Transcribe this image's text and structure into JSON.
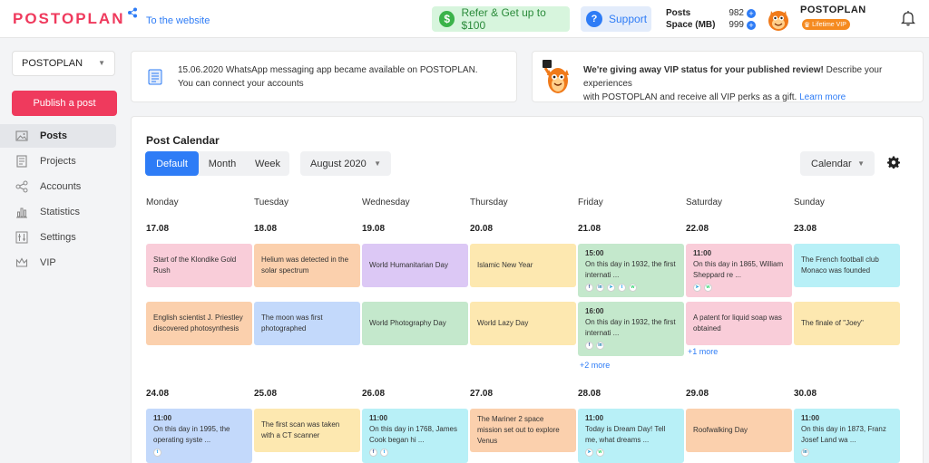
{
  "header": {
    "logo": "POSTOPLAN",
    "to_website": "To the website",
    "refer_label": "Refer & Get up to $100",
    "refer_symbol": "$",
    "support_label": "Support",
    "support_symbol": "?",
    "posts_label": "Posts",
    "posts_value": "982",
    "space_label": "Space (MB)",
    "space_value": "999",
    "plus_symbol": "+",
    "user_name": "POSTOPLAN",
    "vip_badge": "Lifetime VIP"
  },
  "sidebar": {
    "brand": "POSTOPLAN",
    "publish_label": "Publish a post",
    "items": [
      {
        "label": "Posts",
        "icon": "image-icon"
      },
      {
        "label": "Projects",
        "icon": "projects-icon"
      },
      {
        "label": "Accounts",
        "icon": "share-icon"
      },
      {
        "label": "Statistics",
        "icon": "chart-icon"
      },
      {
        "label": "Settings",
        "icon": "sliders-icon"
      },
      {
        "label": "VIP",
        "icon": "crown-icon"
      }
    ]
  },
  "notices": {
    "whatsapp_line1": "15.06.2020 WhatsApp messaging app became available on POSTOPLAN.",
    "whatsapp_line2": "You can connect your accounts",
    "vip_bold": "We're giving away VIP status for your published review!",
    "vip_text1": " Describe your experiences",
    "vip_text2": "with POSTOPLAN and receive all VIP perks as a gift.",
    "vip_link": "Learn more"
  },
  "calendar": {
    "title": "Post Calendar",
    "modes": [
      "Default",
      "Month",
      "Week"
    ],
    "month": "August 2020",
    "view": "Calendar",
    "days": [
      "Monday",
      "Tuesday",
      "Wednesday",
      "Thursday",
      "Friday",
      "Saturday",
      "Sunday"
    ],
    "week1_dates": [
      "17.08",
      "18.08",
      "19.08",
      "20.08",
      "21.08",
      "22.08",
      "23.08"
    ],
    "week2_dates": [
      "24.08",
      "25.08",
      "26.08",
      "27.08",
      "28.08",
      "29.08",
      "30.08"
    ],
    "events": {
      "mon1": {
        "text": "Start of the Klondike Gold Rush"
      },
      "tue1": {
        "text": "Helium was detected in the solar spectrum"
      },
      "wed1": {
        "text": "World Humanitarian Day"
      },
      "thu1": {
        "text": "Islamic New Year"
      },
      "fri1": {
        "time": "15:00",
        "text": "On this day in 1932, the first internati ..."
      },
      "sat1": {
        "time": "11:00",
        "text": "On this day in 1865, William Sheppard re ..."
      },
      "sun1": {
        "text": "The French football club Monaco was founded"
      },
      "mon2": {
        "text": "English scientist J. Priestley discovered photosynthesis"
      },
      "tue2": {
        "text": "The moon was first photographed"
      },
      "wed2": {
        "text": "World Photography Day"
      },
      "thu2": {
        "text": "World Lazy Day"
      },
      "fri2": {
        "time": "16:00",
        "text": "On this day in 1932, the first internati ..."
      },
      "sat2": {
        "text": "A patent for liquid soap was obtained"
      },
      "sun2": {
        "text": "The finale of \"Joey\""
      },
      "mon3": {
        "time": "11:00",
        "text": "On this day in 1995, the operating syste ..."
      },
      "tue3": {
        "text": "The first scan was taken with a CT scanner"
      },
      "wed3": {
        "time": "11:00",
        "text": "On this day in 1768, James Cook began hi ..."
      },
      "thu3": {
        "text": "The Mariner 2 space mission set out to explore Venus"
      },
      "fri3": {
        "time": "11:00",
        "text": "Today is Dream Day! Tell me, what dreams ..."
      },
      "sat3": {
        "text": "Roofwalking Day"
      },
      "sun3": {
        "time": "11:00",
        "text": "On this day in 1873, Franz Josef Land wa ..."
      }
    },
    "more_fri": "+2 more",
    "more_sat": "+1 more",
    "social": {
      "f": "f",
      "in": "in",
      "tg": "➤",
      "tw": "t",
      "wa": "w"
    }
  },
  "colors": {
    "accent": "#ef3a5d",
    "primary": "#2e7cf6",
    "pink": "#f9cdd9",
    "orange": "#fbd0ad",
    "purple": "#dcc8f5",
    "yellow": "#fde8b0",
    "green": "#c4e8cc",
    "cyan": "#b8f0f7",
    "blue": "#c3d9fb"
  }
}
